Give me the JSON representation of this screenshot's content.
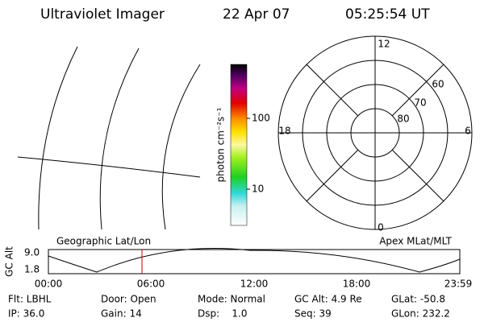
{
  "header": {
    "title": "Ultraviolet Imager",
    "date": "22 Apr 07",
    "time": "05:25:54 UT"
  },
  "colorbar": {
    "label": "photon cm⁻²s⁻¹",
    "ticks": [
      "100",
      "10"
    ]
  },
  "polar": {
    "mlt_labels": [
      "12",
      "6",
      "0",
      "18"
    ],
    "lat_labels": [
      "60",
      "70",
      "80"
    ]
  },
  "timeline": {
    "y_label": "GC Alt",
    "yticks": [
      "9.0",
      "1.8"
    ],
    "left_label": "Geographic Lat/Lon",
    "right_label": "Apex MLat/MLT",
    "xticks": [
      "00:00",
      "06:00",
      "12:00",
      "18:00",
      "23:59"
    ]
  },
  "info": [
    [
      "Flt: LBHL",
      "Door: Open",
      "Mode: Normal",
      "GC Alt: 4.9 Re",
      "GLat: -50.8"
    ],
    [
      "IP: 36.0",
      "Gain: 14",
      "Dsp:    1.0",
      "Seq: 39",
      "GLon: 232.2"
    ]
  ]
}
